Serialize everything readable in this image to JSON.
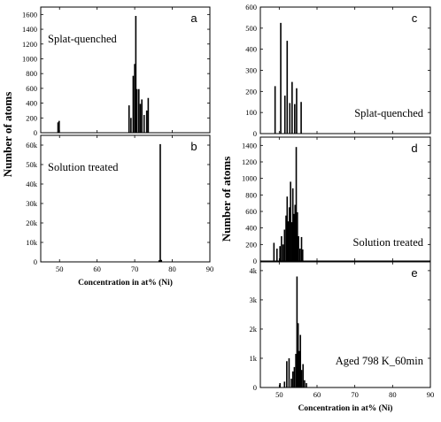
{
  "chart_data": [
    {
      "id": "a",
      "type": "bar",
      "letter": "a",
      "annotation": "Splat-quenched",
      "ylabel": "Number of atoms",
      "xlim": [
        45,
        90
      ],
      "ylim": [
        0,
        1700
      ],
      "xticks": [
        50,
        60,
        70,
        80,
        90
      ],
      "yticks": [
        0,
        200,
        400,
        600,
        800,
        1000,
        1200,
        1400,
        1600
      ],
      "ytick_labels": [
        "0",
        "200",
        "400",
        "600",
        "800",
        "1000",
        "1200",
        "1400",
        "1600"
      ],
      "bars": [
        [
          49.6,
          140
        ],
        [
          49.9,
          160
        ],
        [
          68.5,
          370
        ],
        [
          69.0,
          200
        ],
        [
          69.6,
          770
        ],
        [
          70.0,
          930
        ],
        [
          70.3,
          1580
        ],
        [
          70.6,
          590
        ],
        [
          71.1,
          590
        ],
        [
          71.5,
          390
        ],
        [
          71.9,
          450
        ],
        [
          72.5,
          240
        ],
        [
          73.2,
          300
        ],
        [
          73.6,
          470
        ]
      ]
    },
    {
      "id": "b",
      "type": "bar",
      "letter": "b",
      "annotation": "Solution treated",
      "xlabel": "Concentration in at% (Ni)",
      "xlim": [
        45,
        90
      ],
      "ylim": [
        0,
        65000
      ],
      "xticks": [
        50,
        60,
        70,
        80,
        90
      ],
      "xtick_labels": [
        "50",
        "60",
        "70",
        "80",
        "90"
      ],
      "yticks": [
        0,
        10000,
        20000,
        30000,
        40000,
        50000,
        60000
      ],
      "ytick_labels": [
        "0",
        "10k",
        "20k",
        "30k",
        "40k",
        "50k",
        "60k"
      ],
      "bars": [
        [
          76.5,
          800
        ],
        [
          76.8,
          60500
        ],
        [
          77.1,
          1000
        ]
      ]
    },
    {
      "id": "c",
      "type": "bar",
      "letter": "c",
      "annotation": "Splat-quenched",
      "xlim": [
        45,
        90
      ],
      "ylim": [
        0,
        600
      ],
      "xticks": [
        50,
        60,
        70,
        80,
        90
      ],
      "yticks": [
        0,
        100,
        200,
        300,
        400,
        500,
        600
      ],
      "ytick_labels": [
        "0",
        "100",
        "200",
        "300",
        "400",
        "500",
        "600"
      ],
      "bars": [
        [
          48.9,
          225
        ],
        [
          50.4,
          525
        ],
        [
          51.5,
          180
        ],
        [
          52.1,
          440
        ],
        [
          52.8,
          145
        ],
        [
          53.4,
          245
        ],
        [
          54.1,
          140
        ],
        [
          54.6,
          215
        ],
        [
          55.8,
          150
        ]
      ]
    },
    {
      "id": "d",
      "type": "bar",
      "letter": "d",
      "annotation": "Solution treated",
      "ylabel": "Number of atoms",
      "xlim": [
        45,
        90
      ],
      "ylim": [
        0,
        1500
      ],
      "xticks": [
        50,
        60,
        70,
        80,
        90
      ],
      "yticks": [
        0,
        200,
        400,
        600,
        800,
        1000,
        1200,
        1400
      ],
      "ytick_labels": [
        "0",
        "200",
        "400",
        "600",
        "800",
        "1000",
        "1200",
        "1400"
      ],
      "bars": [
        [
          48.6,
          220
        ],
        [
          49.4,
          150
        ],
        [
          50.2,
          180
        ],
        [
          50.6,
          300
        ],
        [
          51.0,
          200
        ],
        [
          51.4,
          380
        ],
        [
          51.8,
          550
        ],
        [
          52.1,
          780
        ],
        [
          52.4,
          480
        ],
        [
          52.7,
          650
        ],
        [
          53.0,
          960
        ],
        [
          53.3,
          470
        ],
        [
          53.6,
          880
        ],
        [
          53.9,
          570
        ],
        [
          54.2,
          680
        ],
        [
          54.5,
          1380
        ],
        [
          54.8,
          590
        ],
        [
          55.1,
          300
        ],
        [
          55.5,
          150
        ],
        [
          55.9,
          290
        ],
        [
          56.2,
          140
        ]
      ]
    },
    {
      "id": "e",
      "type": "bar",
      "letter": "e",
      "annotation": "Aged 798 K_60min",
      "xlabel": "Concentration in at% (Ni)",
      "xlim": [
        45,
        90
      ],
      "ylim": [
        0,
        4300
      ],
      "xticks": [
        50,
        60,
        70,
        80,
        90
      ],
      "xtick_labels": [
        "50",
        "60",
        "70",
        "80",
        "90"
      ],
      "yticks": [
        0,
        1000,
        2000,
        3000,
        4000
      ],
      "ytick_labels": [
        "0",
        "1k",
        "2k",
        "3k",
        "4k"
      ],
      "bars": [
        [
          50.2,
          150
        ],
        [
          51.4,
          200
        ],
        [
          52.0,
          900
        ],
        [
          52.6,
          1000
        ],
        [
          53.2,
          300
        ],
        [
          53.6,
          550
        ],
        [
          54.0,
          700
        ],
        [
          54.4,
          1150
        ],
        [
          54.7,
          3800
        ],
        [
          55.0,
          2200
        ],
        [
          55.3,
          1250
        ],
        [
          55.6,
          1800
        ],
        [
          55.9,
          600
        ],
        [
          56.3,
          800
        ],
        [
          56.7,
          250
        ],
        [
          57.2,
          150
        ]
      ]
    }
  ]
}
